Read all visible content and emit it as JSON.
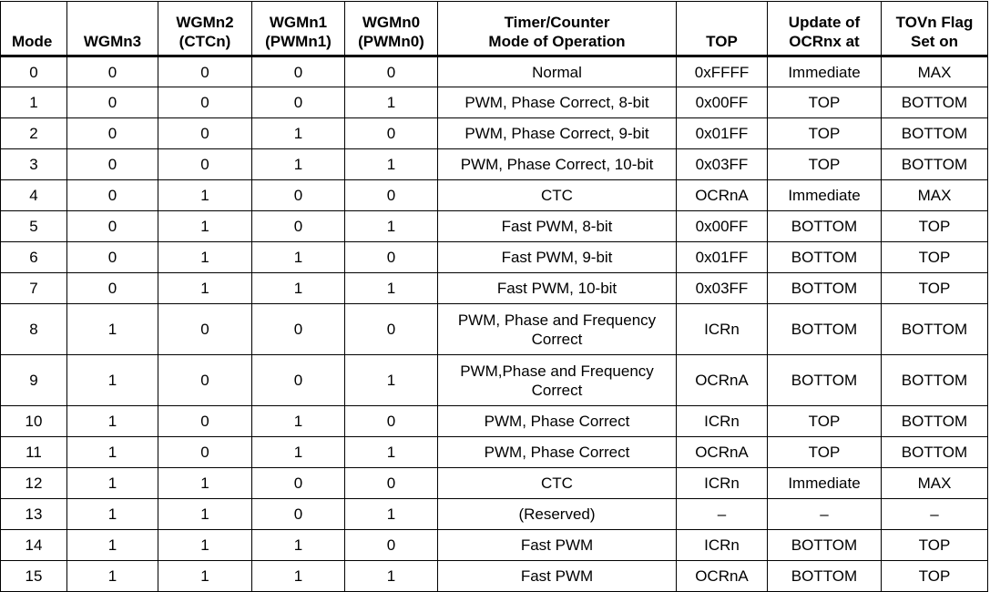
{
  "headers": {
    "mode": "Mode",
    "wgm3": "WGMn3",
    "wgm2": [
      "WGMn2",
      "(CTCn)"
    ],
    "wgm1": [
      "WGMn1",
      "(PWMn1)"
    ],
    "wgm0": [
      "WGMn0",
      "(PWMn0)"
    ],
    "op": [
      "Timer/Counter",
      "Mode of Operation"
    ],
    "top": "TOP",
    "update": [
      "Update of",
      "OCRnx at"
    ],
    "tov": [
      "TOVn Flag",
      "Set on"
    ]
  },
  "rows": [
    {
      "mode": "0",
      "wgm3": "0",
      "wgm2": "0",
      "wgm1": "0",
      "wgm0": "0",
      "op": "Normal",
      "top": "0xFFFF",
      "update": "Immediate",
      "tov": "MAX"
    },
    {
      "mode": "1",
      "wgm3": "0",
      "wgm2": "0",
      "wgm1": "0",
      "wgm0": "1",
      "op": "PWM, Phase Correct, 8-bit",
      "top": "0x00FF",
      "update": "TOP",
      "tov": "BOTTOM"
    },
    {
      "mode": "2",
      "wgm3": "0",
      "wgm2": "0",
      "wgm1": "1",
      "wgm0": "0",
      "op": "PWM, Phase Correct, 9-bit",
      "top": "0x01FF",
      "update": "TOP",
      "tov": "BOTTOM"
    },
    {
      "mode": "3",
      "wgm3": "0",
      "wgm2": "0",
      "wgm1": "1",
      "wgm0": "1",
      "op": "PWM, Phase Correct, 10-bit",
      "top": "0x03FF",
      "update": "TOP",
      "tov": "BOTTOM"
    },
    {
      "mode": "4",
      "wgm3": "0",
      "wgm2": "1",
      "wgm1": "0",
      "wgm0": "0",
      "op": "CTC",
      "top": "OCRnA",
      "update": "Immediate",
      "tov": "MAX"
    },
    {
      "mode": "5",
      "wgm3": "0",
      "wgm2": "1",
      "wgm1": "0",
      "wgm0": "1",
      "op": "Fast PWM, 8-bit",
      "top": "0x00FF",
      "update": "BOTTOM",
      "tov": "TOP"
    },
    {
      "mode": "6",
      "wgm3": "0",
      "wgm2": "1",
      "wgm1": "1",
      "wgm0": "0",
      "op": "Fast PWM, 9-bit",
      "top": "0x01FF",
      "update": "BOTTOM",
      "tov": "TOP"
    },
    {
      "mode": "7",
      "wgm3": "0",
      "wgm2": "1",
      "wgm1": "1",
      "wgm0": "1",
      "op": "Fast PWM, 10-bit",
      "top": "0x03FF",
      "update": "BOTTOM",
      "tov": "TOP"
    },
    {
      "mode": "8",
      "wgm3": "1",
      "wgm2": "0",
      "wgm1": "0",
      "wgm0": "0",
      "op": "PWM, Phase and Frequency Correct",
      "top": "ICRn",
      "update": "BOTTOM",
      "tov": "BOTTOM"
    },
    {
      "mode": "9",
      "wgm3": "1",
      "wgm2": "0",
      "wgm1": "0",
      "wgm0": "1",
      "op": "PWM,Phase and Frequency Correct",
      "top": "OCRnA",
      "update": "BOTTOM",
      "tov": "BOTTOM"
    },
    {
      "mode": "10",
      "wgm3": "1",
      "wgm2": "0",
      "wgm1": "1",
      "wgm0": "0",
      "op": "PWM, Phase Correct",
      "top": "ICRn",
      "update": "TOP",
      "tov": "BOTTOM"
    },
    {
      "mode": "11",
      "wgm3": "1",
      "wgm2": "0",
      "wgm1": "1",
      "wgm0": "1",
      "op": "PWM, Phase Correct",
      "top": "OCRnA",
      "update": "TOP",
      "tov": "BOTTOM"
    },
    {
      "mode": "12",
      "wgm3": "1",
      "wgm2": "1",
      "wgm1": "0",
      "wgm0": "0",
      "op": "CTC",
      "top": "ICRn",
      "update": "Immediate",
      "tov": "MAX"
    },
    {
      "mode": "13",
      "wgm3": "1",
      "wgm2": "1",
      "wgm1": "0",
      "wgm0": "1",
      "op": "(Reserved)",
      "top": "–",
      "update": "–",
      "tov": "–"
    },
    {
      "mode": "14",
      "wgm3": "1",
      "wgm2": "1",
      "wgm1": "1",
      "wgm0": "0",
      "op": "Fast PWM",
      "top": "ICRn",
      "update": "BOTTOM",
      "tov": "TOP"
    },
    {
      "mode": "15",
      "wgm3": "1",
      "wgm2": "1",
      "wgm1": "1",
      "wgm0": "1",
      "op": "Fast PWM",
      "top": "OCRnA",
      "update": "BOTTOM",
      "tov": "TOP"
    }
  ]
}
